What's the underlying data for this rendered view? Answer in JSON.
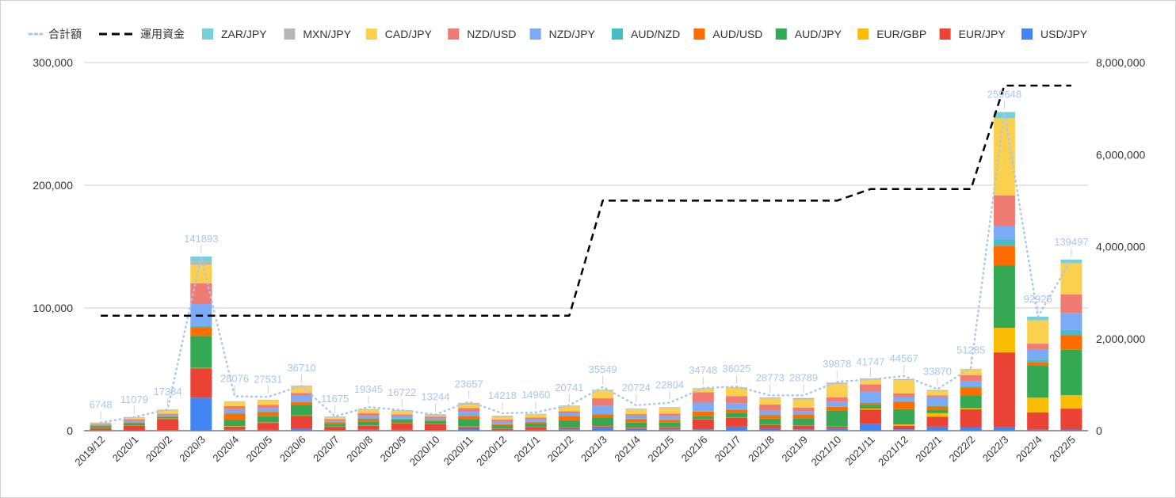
{
  "chart_data": {
    "type": "bar",
    "stacked": true,
    "title": "",
    "categories": [
      "2019/12",
      "2020/1",
      "2020/2",
      "2020/3",
      "2020/4",
      "2020/5",
      "2020/6",
      "2020/7",
      "2020/8",
      "2020/9",
      "2020/10",
      "2020/11",
      "2020/12",
      "2021/1",
      "2021/2",
      "2021/3",
      "2021/4",
      "2021/5",
      "2021/6",
      "2021/7",
      "2021/8",
      "2021/9",
      "2021/10",
      "2021/11",
      "2021/12",
      "2022/1",
      "2022/2",
      "2022/3",
      "2022/4",
      "2022/5"
    ],
    "left_axis": {
      "ylim": [
        0,
        300000
      ],
      "ticks": [
        "0",
        "100,000",
        "200,000",
        "300,000"
      ],
      "tick_values": [
        0,
        100000,
        200000,
        300000
      ]
    },
    "right_axis": {
      "ylim": [
        0,
        8000000
      ],
      "ticks": [
        "0",
        "2,000,000",
        "4,000,000",
        "6,000,000",
        "8,000,000"
      ],
      "tick_values": [
        0,
        2000000,
        4000000,
        6000000,
        8000000
      ]
    },
    "grid": true,
    "legend_position": "top",
    "series": [
      {
        "name": "USD/JPY",
        "color": "#4285f4",
        "values": [
          400,
          300,
          500,
          26900,
          800,
          700,
          1500,
          400,
          800,
          700,
          500,
          1300,
          600,
          700,
          1200,
          2500,
          1500,
          1100,
          1100,
          3300,
          1600,
          1100,
          1800,
          5600,
          1200,
          3300,
          2900,
          2800,
          900,
          1000
        ]
      },
      {
        "name": "EUR/JPY",
        "color": "#ea4335",
        "values": [
          1500,
          3600,
          9100,
          24000,
          2500,
          5700,
          10700,
          2800,
          3500,
          5400,
          5000,
          1800,
          800,
          2200,
          1100,
          1200,
          900,
          1400,
          8000,
          7300,
          3000,
          3200,
          1400,
          11500,
          2900,
          8000,
          14500,
          61000,
          14000,
          17000
        ]
      },
      {
        "name": "EUR/GBP",
        "color": "#fbbc04",
        "values": [
          200,
          200,
          300,
          300,
          400,
          300,
          300,
          200,
          200,
          300,
          200,
          300,
          200,
          200,
          200,
          200,
          200,
          200,
          200,
          200,
          200,
          200,
          200,
          1000,
          1000,
          3000,
          1000,
          20000,
          12000,
          11000
        ]
      },
      {
        "name": "AUD/JPY",
        "color": "#34a853",
        "values": [
          1500,
          2000,
          1100,
          26000,
          5000,
          5000,
          8500,
          2200,
          3000,
          2600,
          2200,
          6000,
          2600,
          2700,
          6000,
          7000,
          4000,
          3900,
          2500,
          3800,
          5000,
          5600,
          13000,
          3000,
          12500,
          3000,
          10000,
          51000,
          26000,
          37000
        ]
      },
      {
        "name": "AUD/USD",
        "color": "#ff6d01",
        "values": [
          600,
          600,
          300,
          7000,
          5200,
          3500,
          2200,
          1400,
          2200,
          600,
          1000,
          2500,
          1100,
          1200,
          3100,
          2500,
          3000,
          2300,
          3800,
          2600,
          2800,
          2800,
          3000,
          1500,
          5900,
          2800,
          7000,
          16000,
          3000,
          12000
        ]
      },
      {
        "name": "AUD/NZD",
        "color": "#46bdc6",
        "values": [
          200,
          300,
          300,
          1000,
          600,
          300,
          500,
          200,
          300,
          300,
          200,
          300,
          300,
          300,
          300,
          500,
          300,
          300,
          300,
          300,
          300,
          300,
          400,
          300,
          400,
          500,
          800,
          5000,
          2000,
          4000
        ]
      },
      {
        "name": "NZD/JPY",
        "color": "#7baaf7",
        "values": [
          600,
          1000,
          1200,
          18000,
          3000,
          3000,
          5000,
          1200,
          2200,
          1800,
          1200,
          3200,
          1800,
          2000,
          2300,
          6500,
          2500,
          3000,
          7000,
          5000,
          3500,
          2500,
          4000,
          9000,
          3500,
          6600,
          4000,
          11000,
          8000,
          14000
        ],
        "_": null
      },
      {
        "name": "NZD/USD",
        "color": "#f07b72",
        "values": [
          500,
          1300,
          1000,
          17000,
          2500,
          2500,
          2000,
          1100,
          2100,
          1500,
          1200,
          3200,
          1600,
          1500,
          1700,
          6000,
          1200,
          1800,
          8500,
          5700,
          5000,
          3200,
          3500,
          5800,
          3000,
          1500,
          5000,
          25000,
          5000,
          15000
        ]
      },
      {
        "name": "CAD/JPY",
        "color": "#fcd04f",
        "values": [
          700,
          1300,
          2700,
          15000,
          3700,
          3800,
          5200,
          1500,
          2800,
          2800,
          1000,
          3000,
          2300,
          2500,
          4300,
          6300,
          3800,
          4600,
          2600,
          6600,
          5100,
          6600,
          10900,
          4000,
          10800,
          3900,
          4700,
          62848,
          19025,
          25497
        ]
      },
      {
        "name": "MXN/JPY",
        "color": "#b7b7b7",
        "values": [
          448,
          379,
          584,
          2693,
          276,
          331,
          710,
          475,
          445,
          522,
          744,
          957,
          718,
          460,
          341,
          549,
          524,
          504,
          548,
          525,
          573,
          1089,
          878,
          847,
          767,
          570,
          385,
          0,
          0,
          0
        ]
      },
      {
        "name": "ZAR/JPY",
        "color": "#78cfd7",
        "values": [
          100,
          100,
          100,
          4000,
          100,
          100,
          100,
          100,
          100,
          100,
          100,
          100,
          100,
          100,
          100,
          100,
          100,
          100,
          100,
          100,
          100,
          100,
          100,
          100,
          100,
          100,
          100,
          5000,
          3000,
          3000
        ]
      }
    ],
    "line_series": [
      {
        "name": "合計額",
        "color": "#a9c6ef",
        "style": "dotted",
        "axis": "left",
        "values": [
          6748,
          11079,
          17384,
          141893,
          28076,
          27531,
          36710,
          11675,
          19345,
          16722,
          13244,
          23657,
          14218,
          14960,
          20741,
          35549,
          20724,
          22804,
          34748,
          36025,
          28773,
          28789,
          39878,
          41747,
          44567,
          33870,
          51285,
          259648,
          92925,
          139497
        ],
        "labels": [
          "6748",
          "11079",
          "17384",
          "141893",
          "28076",
          "27531",
          "36710",
          "11675",
          "19345",
          "16722",
          "13244",
          "23657",
          "14218",
          "14960",
          "20741",
          "35549",
          "20724",
          "22804",
          "34748",
          "36025",
          "28773",
          "28789",
          "39878",
          "41747",
          "44567",
          "33870",
          "51285",
          "259648",
          "92925",
          "139497"
        ]
      },
      {
        "name": "運用資金",
        "color": "#000000",
        "style": "dashed",
        "axis": "right",
        "values": [
          2500000,
          2500000,
          2500000,
          2500000,
          2500000,
          2500000,
          2500000,
          2500000,
          2500000,
          2500000,
          2500000,
          2500000,
          2500000,
          2500000,
          2500000,
          5000000,
          5000000,
          5000000,
          5000000,
          5000000,
          5000000,
          5000000,
          5000000,
          5250000,
          5250000,
          5250000,
          5250000,
          7500000,
          7500000,
          7500000
        ]
      }
    ],
    "legend_order": [
      "合計額",
      "運用資金",
      "ZAR/JPY",
      "MXN/JPY",
      "CAD/JPY",
      "NZD/USD",
      "NZD/JPY",
      "AUD/NZD",
      "AUD/USD",
      "AUD/JPY",
      "EUR/GBP",
      "EUR/JPY",
      "USD/JPY"
    ]
  }
}
